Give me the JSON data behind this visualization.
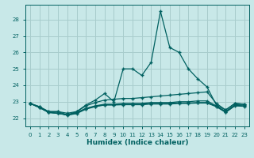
{
  "xlabel": "Humidex (Indice chaleur)",
  "background_color": "#c8e8e8",
  "grid_color": "#a8cccc",
  "line_color": "#006060",
  "xlim": [
    -0.5,
    23.5
  ],
  "ylim": [
    21.5,
    28.9
  ],
  "yticks": [
    22,
    23,
    24,
    25,
    26,
    27,
    28
  ],
  "xticks": [
    0,
    1,
    2,
    3,
    4,
    5,
    6,
    7,
    8,
    9,
    10,
    11,
    12,
    13,
    14,
    15,
    16,
    17,
    18,
    19,
    20,
    21,
    22,
    23
  ],
  "line_main": [
    22.9,
    22.7,
    22.4,
    22.4,
    22.2,
    22.4,
    22.8,
    23.1,
    23.5,
    23.0,
    25.0,
    25.0,
    24.6,
    25.4,
    28.5,
    26.3,
    26.0,
    25.0,
    24.4,
    23.9,
    22.8,
    22.5,
    22.9,
    22.85
  ],
  "line_avg": [
    22.9,
    22.7,
    22.4,
    22.4,
    22.3,
    22.4,
    22.75,
    22.95,
    23.1,
    23.15,
    23.2,
    23.2,
    23.25,
    23.3,
    23.35,
    23.4,
    23.45,
    23.5,
    23.55,
    23.6,
    22.9,
    22.5,
    22.9,
    22.85
  ],
  "line_flat1": [
    22.9,
    22.65,
    22.35,
    22.3,
    22.2,
    22.35,
    22.6,
    22.75,
    22.85,
    22.85,
    22.9,
    22.9,
    22.9,
    22.95,
    22.95,
    22.95,
    23.0,
    23.0,
    23.05,
    23.05,
    22.75,
    22.4,
    22.82,
    22.8
  ],
  "line_flat2": [
    22.9,
    22.65,
    22.35,
    22.3,
    22.2,
    22.3,
    22.58,
    22.72,
    22.82,
    22.82,
    22.85,
    22.85,
    22.85,
    22.9,
    22.9,
    22.9,
    22.92,
    22.92,
    22.95,
    22.95,
    22.72,
    22.38,
    22.78,
    22.75
  ],
  "line_flat3": [
    22.9,
    22.65,
    22.35,
    22.3,
    22.18,
    22.28,
    22.55,
    22.7,
    22.8,
    22.8,
    22.82,
    22.82,
    22.82,
    22.86,
    22.86,
    22.86,
    22.9,
    22.9,
    22.92,
    22.92,
    22.7,
    22.35,
    22.75,
    22.72
  ]
}
